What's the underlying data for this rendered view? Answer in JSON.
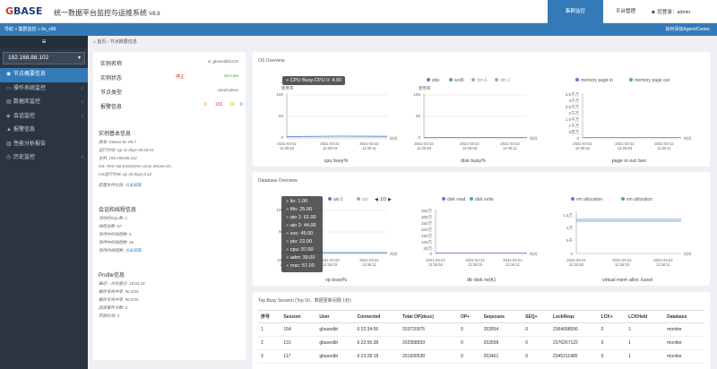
{
  "app": {
    "logo_g": "G",
    "logo_rest": "BASE",
    "title": "统一数据平台监控与运维系统",
    "version": "V8.8"
  },
  "topnav": [
    {
      "label": "集群监控"
    },
    {
      "label": "平台管理"
    }
  ],
  "user": {
    "icon": "user-icon",
    "name": "您登录：admin"
  },
  "crumb": {
    "left": "导航 » 集群监控 » 8s_v88",
    "right": "如何添加Agent/Center"
  },
  "sidebar": {
    "toggle": "≡",
    "host": "192.168.88.102",
    "items": [
      {
        "label": "节点概要信息",
        "icon": "info-icon",
        "active": true
      },
      {
        "label": "操作系统监控",
        "icon": "monitor-icon",
        "arrow": true
      },
      {
        "label": "数据库监控",
        "icon": "database-icon",
        "arrow": true
      },
      {
        "label": "会话监控",
        "icon": "session-icon",
        "arrow": true
      },
      {
        "label": "报警信息",
        "icon": "alert-icon"
      },
      {
        "label": "性能分析报告",
        "icon": "chart-icon"
      },
      {
        "label": "历史监控",
        "icon": "history-icon",
        "arrow": true
      }
    ]
  },
  "subcrumb": "首页 › 节点概要信息",
  "instance": {
    "name_k": "实例名称",
    "name_v": "vi_gbasedbt1210",
    "status_k": "实例状态",
    "status_a": "停止",
    "status_b": "On-Line",
    "type_k": "节点类型",
    "type_v": "stand-alone",
    "alarm_k": "报警信息",
    "alarm_counts": [
      "0",
      "131",
      "10",
      "0"
    ],
    "basic_title": "实例基本信息",
    "basic_lines": [
      "版本: GBase 8s V8.7",
      "运行时间: Up 11 days 05:26:51",
      "主机: 192.168.88.102",
      "OS: Red Hat Enterprise Linux Server.rel...",
      "OS运行时长: up 33 days,3:12"
    ],
    "config_k": "配置文件比较:",
    "config_link": "点击获取",
    "session_title": "会话和线程信息",
    "session_lines": [
      "活动的SQL数: 1",
      "线程总数: 67",
      "等待中的线程数: 0",
      "等待中的线程数: 56",
      "等待的线程数:"
    ],
    "session_link": "点击获取",
    "profile_title": "Profile信息",
    "profile_lines": [
      "最近一次检查点: 19:03:18",
      "缓存读命中率: 90.43%",
      "缓存写命中率: 90.57%",
      "回滚事件次数: 3",
      "死锁检测: 3"
    ]
  },
  "os_card": {
    "title": "OS Overview",
    "cpu": {
      "legend_tip": "CPU Busy-CPU 0: 4.00",
      "ylabel": "使用率",
      "yticks": [
        "100",
        "50",
        "0"
      ],
      "xticks": [
        "2021-03-22\n12:25:52",
        "2021-03-22\n12:26:03",
        "2021-03-22\n12:26:11"
      ],
      "xunit": "时间",
      "caption": "cpu busy%"
    },
    "disk": {
      "legend": [
        "sda",
        "scd0",
        "dm-0",
        "dm-1"
      ],
      "ylabel": "使用率",
      "yticks": [
        "100",
        "50",
        "0"
      ],
      "xticks": [
        "2021-03-22\n12:25:52",
        "2021-03-22\n12:26:03",
        "2021-03-22\n12:26:11"
      ],
      "xunit": "时间",
      "caption": "disk busy%"
    },
    "page": {
      "legend": [
        "memory page in",
        "memory page out"
      ],
      "yticks": [
        "3.5千万",
        "3千万",
        "2.5千万",
        "2千万",
        "1.5千万",
        "1千万",
        "5百万",
        "0"
      ],
      "xticks": [
        "2021-03-22\n12:25:52",
        "2021-03-22\n12:26:03",
        "2021-03-22\n12:26:11"
      ],
      "xunit": "时间",
      "caption": "page in out /sec"
    }
  },
  "db_card": {
    "title": "Database Overview",
    "vp": {
      "legend": [
        "aio 1",
        "aio"
      ],
      "pager": "1/3",
      "tooltip": [
        "lio: 1.00",
        "fifo: 25.00",
        "aio 1: 61.00",
        "aio 2: 44.00",
        "soc: 45.00",
        "pio: 22.00",
        "cpu: 97.00",
        "adm: 39.00",
        "msc: 57.00"
      ],
      "yticks": [
        "100",
        "50",
        "0"
      ],
      "xticks": [
        "2021-03-22\n12:25:52",
        "2021-03-22\n12:26:03",
        "2021-03-22\n12:26:11"
      ],
      "xunit": "时间",
      "caption": "vp busy%"
    },
    "dbdisk": {
      "legend": [
        "disk read",
        "disk write"
      ],
      "yticks": [
        "350万",
        "300万",
        "250万",
        "200万",
        "150万",
        "100万",
        "50万",
        "0"
      ],
      "xticks": [
        "2021-03-22\n12:25:52",
        "2021-03-22\n12:26:03",
        "2021-03-22\n12:26:11"
      ],
      "xunit": "时间",
      "caption": "db disk rw(K)"
    },
    "vm": {
      "legend": [
        "vm allocation",
        "vm utilization"
      ],
      "yticks": [
        "1.5万",
        "1万",
        "5千",
        "0"
      ],
      "xticks": [
        "2021-03-22\n12:25:52",
        "2021-03-22\n12:26:03",
        "2021-03-22\n12:26:11"
      ],
      "xunit": "时间",
      "caption": "virtual mem alloc /used"
    }
  },
  "session_table": {
    "title": "Top Busy Session (Top 50，数据更新间隔 1秒)",
    "headers": [
      "序号",
      "Session",
      "User",
      "Connected",
      "Total OP(desc)",
      "OP+",
      "Seqscans",
      "SEQ+",
      "LockReqs",
      "LCK+",
      "LCKHeld",
      "Database"
    ],
    "rows": [
      [
        "1",
        "154",
        "gbasedbt",
        "6 22:34:06",
        "203720975",
        "0",
        "263554",
        "0",
        "2364098596",
        "0",
        "1",
        "monitor"
      ],
      [
        "2",
        "131",
        "gbasedbt",
        "6 22:56:38",
        "202958839",
        "0",
        "263558",
        "0",
        "2376267122",
        "0",
        "1",
        "monitor"
      ],
      [
        "3",
        "117",
        "gbasedbt",
        "6 23:28:18",
        "201830538",
        "0",
        "263461",
        "0",
        "2345211485",
        "0",
        "1",
        "monitor"
      ]
    ]
  },
  "colors": {
    "accent": "#337ab7",
    "sidebar": "#2b3542",
    "line": "#3f6fd1"
  }
}
